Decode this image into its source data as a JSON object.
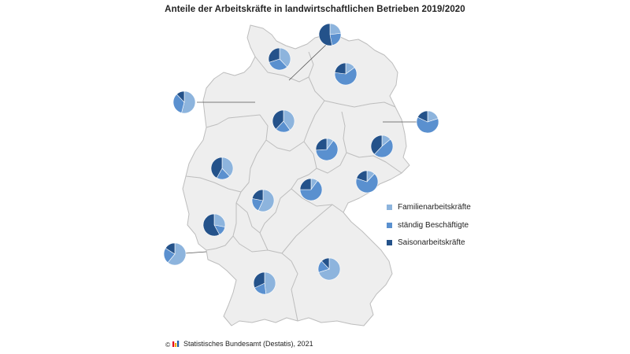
{
  "title": "Anteile der Arbeitskräfte in landwirtschaftlichen Betrieben 2019/2020",
  "source": "Statistisches Bundesamt (Destatis), 2021",
  "colors": {
    "familie": "#8db4dd",
    "staendig": "#5a90cf",
    "saison": "#24528a",
    "land": "#eeeeee",
    "border": "#bdbdbd"
  },
  "legend": [
    {
      "label": "Familienarbeitskräfte",
      "color": "#8db4dd"
    },
    {
      "label": "ständig Beschäftigte",
      "color": "#5a90cf"
    },
    {
      "label": "Saisonarbeitskräfte",
      "color": "#24528a"
    }
  ],
  "chart_data": {
    "type": "pie",
    "title": "Anteile der Arbeitskräfte in landwirtschaftlichen Betrieben 2019/2020",
    "series_names": [
      "Familienarbeitskräfte",
      "ständig Beschäftigte",
      "Saisonarbeitskräfte"
    ],
    "pies": [
      {
        "name": "schleswig-holstein",
        "values": [
          38,
          32,
          30
        ]
      },
      {
        "name": "hamburg",
        "values": [
          23,
          24,
          53
        ]
      },
      {
        "name": "mecklenburg-vorpommern",
        "values": [
          15,
          62,
          23
        ]
      },
      {
        "name": "bremen",
        "values": [
          54,
          34,
          12
        ]
      },
      {
        "name": "niedersachsen",
        "values": [
          40,
          22,
          38
        ]
      },
      {
        "name": "berlin",
        "values": [
          20,
          62,
          18
        ]
      },
      {
        "name": "brandenburg",
        "values": [
          14,
          48,
          38
        ]
      },
      {
        "name": "sachsen-anhalt",
        "values": [
          10,
          64,
          26
        ]
      },
      {
        "name": "nordrhein-westfalen",
        "values": [
          38,
          20,
          42
        ]
      },
      {
        "name": "hessen",
        "values": [
          57,
          21,
          22
        ]
      },
      {
        "name": "thueringen",
        "values": [
          10,
          65,
          25
        ]
      },
      {
        "name": "sachsen",
        "values": [
          12,
          68,
          20
        ]
      },
      {
        "name": "rheinland-pfalz",
        "values": [
          28,
          14,
          58
        ]
      },
      {
        "name": "saarland",
        "values": [
          61,
          23,
          16
        ]
      },
      {
        "name": "baden-wuerttemberg",
        "values": [
          48,
          20,
          32
        ]
      },
      {
        "name": "bayern",
        "values": [
          70,
          18,
          12
        ]
      }
    ]
  }
}
